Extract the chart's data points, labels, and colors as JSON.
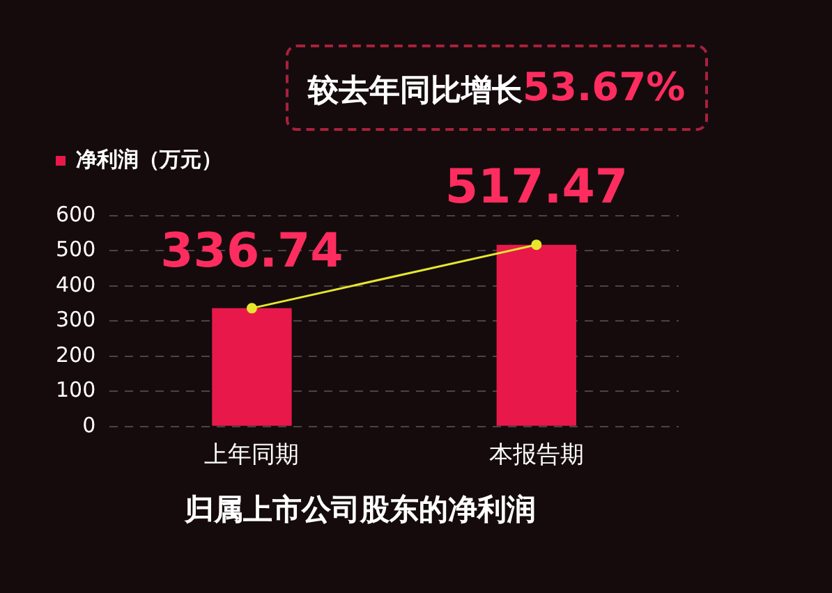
{
  "chart_data": {
    "type": "bar",
    "title": "归属上市公司股东的净利润",
    "categories": [
      "上年同期",
      "本报告期"
    ],
    "series": [
      {
        "name": "净利润（万元）",
        "color": "#e8194a",
        "values": [
          336.74,
          517.47
        ],
        "value_labels": [
          "336.74",
          "517.47"
        ]
      },
      {
        "type": "line",
        "color": "#e6e62e",
        "values": [
          336.74,
          517.47
        ],
        "marker": "circle"
      }
    ],
    "ylim": [
      0,
      600
    ],
    "yticks": [
      0,
      100,
      200,
      300,
      400,
      500,
      600
    ],
    "grid": "y",
    "legend": "top left",
    "annotations": [
      "较去年同比增长53.67%"
    ]
  }
}
